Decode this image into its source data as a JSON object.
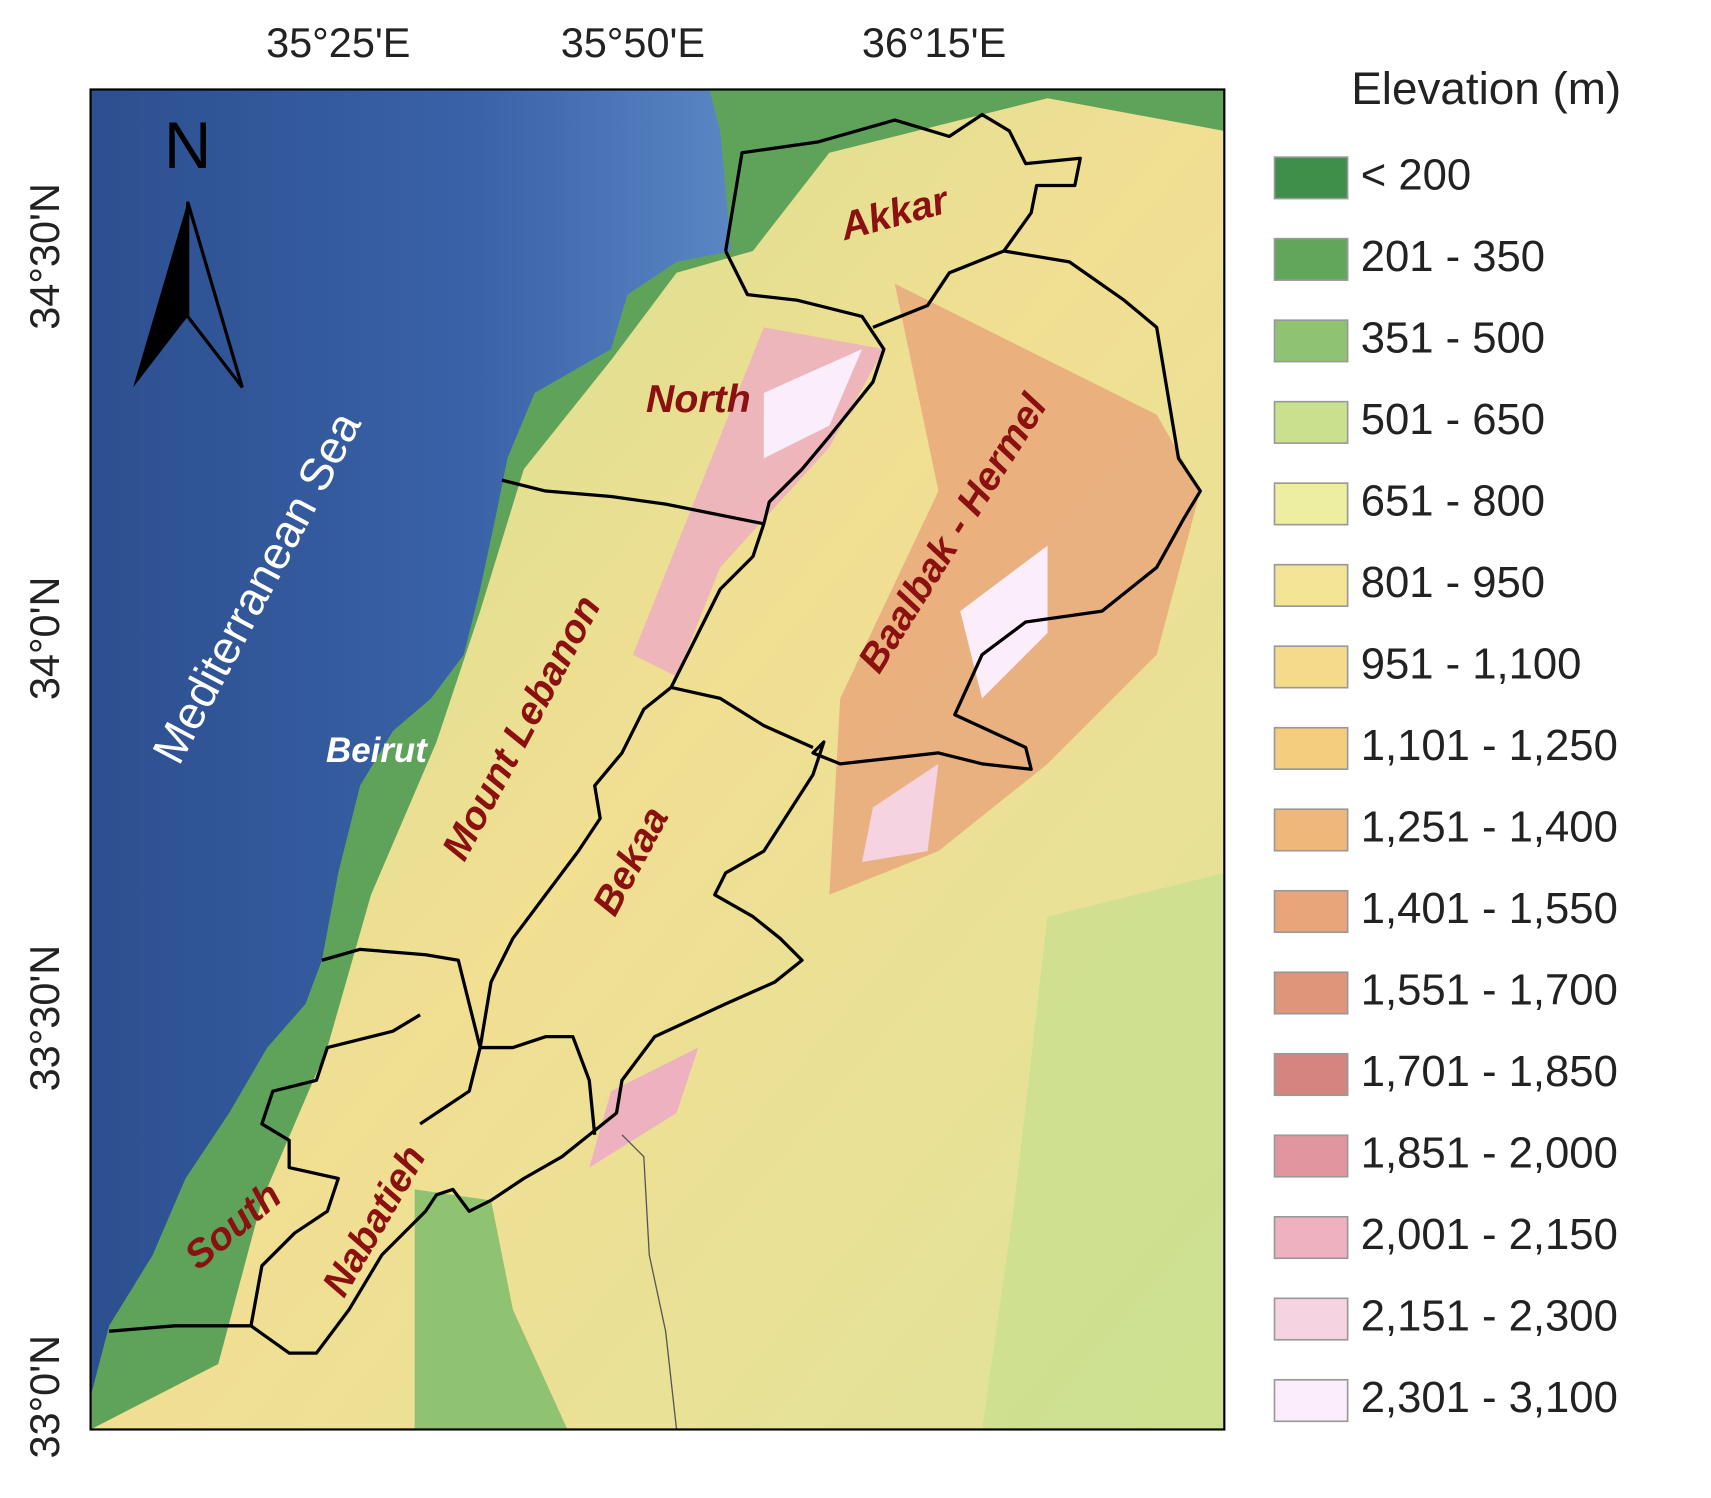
{
  "map": {
    "graticule": {
      "longitude_labels": [
        "35°25'E",
        "35°50'E",
        "36°15'E"
      ],
      "latitude_labels": [
        "34°30'N",
        "34°0'N",
        "33°30'N",
        "33°0'N"
      ]
    },
    "north_arrow": "N",
    "sea_label": "Mediterranean Sea",
    "city_labels": [
      "Beirut"
    ],
    "region_labels": [
      "Akkar",
      "North",
      "Baalbak - Hermel",
      "Mount Lebanon",
      "Bekaa",
      "South",
      "Nabatieh"
    ],
    "legend": {
      "title": "Elevation (m)",
      "items": [
        {
          "label": "< 200",
          "color": "#3f8f4b"
        },
        {
          "label": "201 - 350",
          "color": "#62a65c"
        },
        {
          "label": "351 - 500",
          "color": "#8fc271"
        },
        {
          "label": "501 - 650",
          "color": "#c9e08f"
        },
        {
          "label": "651 - 800",
          "color": "#eeeea0"
        },
        {
          "label": "801 - 950",
          "color": "#f3e496"
        },
        {
          "label": "951 - 1,100",
          "color": "#f5da8b"
        },
        {
          "label": "1,101 - 1,250",
          "color": "#f5cd7f"
        },
        {
          "label": "1,251 - 1,400",
          "color": "#f0b878"
        },
        {
          "label": "1,401 - 1,550",
          "color": "#e9a57a"
        },
        {
          "label": "1,551 - 1,700",
          "color": "#de957a"
        },
        {
          "label": "1,701 - 1,850",
          "color": "#d5857f"
        },
        {
          "label": "1,851 - 2,000",
          "color": "#e0959f"
        },
        {
          "label": "2,001 - 2,150",
          "color": "#edb1c0"
        },
        {
          "label": "2,151 - 2,300",
          "color": "#f6d3e1"
        },
        {
          "label": "2,301 - 3,100",
          "color": "#fbeefa"
        }
      ]
    }
  }
}
